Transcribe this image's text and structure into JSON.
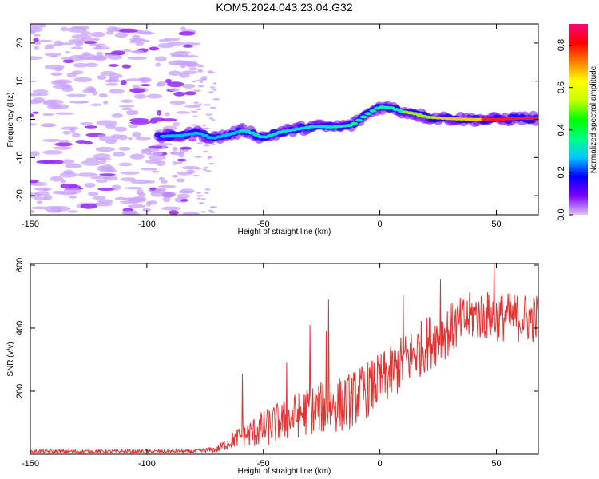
{
  "chart_data": [
    {
      "type": "heatmap",
      "title": "KOM5.2024.043.23.04.G32",
      "xlabel": "Height of straight line (km)",
      "ylabel": "Frequency (Hz)",
      "xlim": [
        -150,
        68
      ],
      "ylim": [
        -25,
        25
      ],
      "xticks": [
        -150,
        -100,
        -50,
        0,
        50
      ],
      "yticks": [
        -20,
        -10,
        0,
        10,
        20
      ],
      "colorbar": {
        "label": "Normalized spectral amplitude",
        "range": [
          0,
          0.9
        ],
        "ticks": [
          0.0,
          0.2,
          0.4,
          0.6,
          0.8
        ],
        "colormap": [
          "#d8b0ff",
          "#7a00ff",
          "#0000ff",
          "#00c8ff",
          "#00ff80",
          "#00ff00",
          "#c8ff00",
          "#ffff00",
          "#ff8000",
          "#ff0000",
          "#ff007f"
        ]
      },
      "trace": [
        {
          "x": -95,
          "y": -4.5
        },
        {
          "x": -85,
          "y": -4.2
        },
        {
          "x": -78,
          "y": -3.5
        },
        {
          "x": -72,
          "y": -5
        },
        {
          "x": -65,
          "y": -4
        },
        {
          "x": -58,
          "y": -2.8
        },
        {
          "x": -50,
          "y": -4.8
        },
        {
          "x": -42,
          "y": -3.2
        },
        {
          "x": -35,
          "y": -2.5
        },
        {
          "x": -28,
          "y": -1.8
        },
        {
          "x": -20,
          "y": -2
        },
        {
          "x": -12,
          "y": -1.5
        },
        {
          "x": -5,
          "y": 1.5
        },
        {
          "x": 0,
          "y": 3.3
        },
        {
          "x": 5,
          "y": 3
        },
        {
          "x": 10,
          "y": 2
        },
        {
          "x": 15,
          "y": 1.5
        },
        {
          "x": 20,
          "y": 0.6
        },
        {
          "x": 30,
          "y": 0.2
        },
        {
          "x": 40,
          "y": 0
        },
        {
          "x": 50,
          "y": 0
        },
        {
          "x": 60,
          "y": 0.3
        },
        {
          "x": 68,
          "y": 0.2
        }
      ]
    },
    {
      "type": "line",
      "xlabel": "Height of straight line (km)",
      "ylabel": "SNR (v/v)",
      "xlim": [
        -150,
        68
      ],
      "ylim": [
        0,
        605
      ],
      "xticks": [
        -150,
        -100,
        -50,
        0,
        50
      ],
      "yticks": [
        200,
        400,
        600
      ],
      "color": "#e8312f",
      "envelope": [
        {
          "x": -150,
          "mean": 9,
          "spread": 6
        },
        {
          "x": -80,
          "mean": 9,
          "spread": 6
        },
        {
          "x": -70,
          "mean": 15,
          "spread": 10
        },
        {
          "x": -62,
          "mean": 50,
          "spread": 30
        },
        {
          "x": -50,
          "mean": 80,
          "spread": 60
        },
        {
          "x": -30,
          "mean": 140,
          "spread": 80
        },
        {
          "x": -15,
          "mean": 160,
          "spread": 90
        },
        {
          "x": 0,
          "mean": 230,
          "spread": 90
        },
        {
          "x": 20,
          "mean": 350,
          "spread": 90
        },
        {
          "x": 40,
          "mean": 440,
          "spread": 80
        },
        {
          "x": 68,
          "mean": 430,
          "spread": 80
        }
      ],
      "spikes": [
        {
          "x": -59,
          "y": 255
        },
        {
          "x": -40,
          "y": 290
        },
        {
          "x": -30,
          "y": 410
        },
        {
          "x": -23,
          "y": 390
        },
        {
          "x": -22,
          "y": 490
        },
        {
          "x": 10,
          "y": 505
        },
        {
          "x": 26,
          "y": 555
        },
        {
          "x": 49,
          "y": 605
        }
      ]
    }
  ]
}
